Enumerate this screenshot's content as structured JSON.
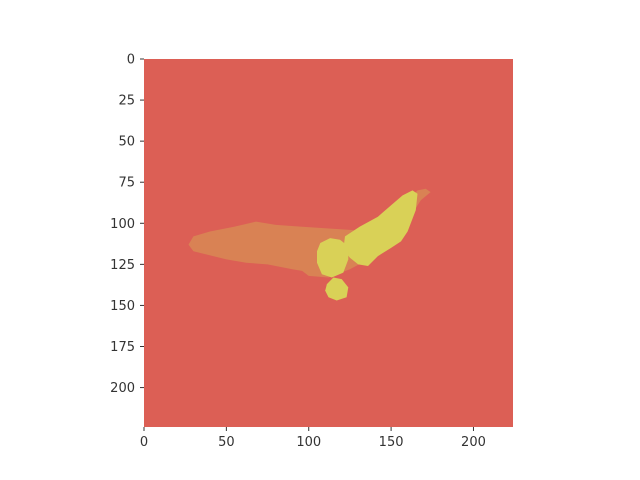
{
  "chart_data": {
    "type": "heatmap",
    "title": "",
    "xlabel": "",
    "ylabel": "",
    "xlim": [
      0,
      224
    ],
    "ylim": [
      224,
      0
    ],
    "xticks": [
      0,
      50,
      100,
      150,
      200
    ],
    "yticks": [
      0,
      25,
      50,
      75,
      100,
      125,
      150,
      175,
      200
    ],
    "grid": false,
    "colors": {
      "background": "#dc5f55",
      "body": "#d98254",
      "highlight": "#d9d157"
    },
    "regions": [
      {
        "class": "body",
        "outline": [
          [
            27,
            113
          ],
          [
            30,
            108
          ],
          [
            40,
            105
          ],
          [
            55,
            102
          ],
          [
            68,
            99
          ],
          [
            80,
            101
          ],
          [
            95,
            102
          ],
          [
            110,
            103
          ],
          [
            125,
            104
          ],
          [
            135,
            105
          ],
          [
            145,
            110
          ],
          [
            140,
            120
          ],
          [
            125,
            128
          ],
          [
            112,
            133
          ],
          [
            100,
            132
          ],
          [
            96,
            129
          ],
          [
            90,
            128
          ],
          [
            75,
            125
          ],
          [
            62,
            124
          ],
          [
            50,
            122
          ],
          [
            38,
            119
          ],
          [
            30,
            117
          ]
        ]
      },
      {
        "class": "body",
        "outline": [
          [
            136,
            110
          ],
          [
            146,
            100
          ],
          [
            156,
            90
          ],
          [
            166,
            80
          ],
          [
            171,
            79
          ],
          [
            174,
            81
          ],
          [
            168,
            86
          ],
          [
            158,
            102
          ],
          [
            152,
            112
          ],
          [
            140,
            116
          ]
        ]
      },
      {
        "class": "highlight",
        "outline": [
          [
            122,
            108
          ],
          [
            131,
            102
          ],
          [
            142,
            96
          ],
          [
            150,
            89
          ],
          [
            157,
            83
          ],
          [
            163,
            80
          ],
          [
            166,
            82
          ],
          [
            165,
            92
          ],
          [
            160,
            105
          ],
          [
            156,
            111
          ],
          [
            150,
            115
          ],
          [
            142,
            120
          ],
          [
            136,
            126
          ],
          [
            130,
            125
          ],
          [
            125,
            121
          ],
          [
            121,
            116
          ]
        ]
      },
      {
        "class": "highlight",
        "outline": [
          [
            107,
            112
          ],
          [
            113,
            109
          ],
          [
            119,
            110
          ],
          [
            124,
            114
          ],
          [
            124,
            122
          ],
          [
            121,
            130
          ],
          [
            114,
            133
          ],
          [
            108,
            131
          ],
          [
            105,
            124
          ],
          [
            105,
            117
          ]
        ]
      },
      {
        "class": "highlight",
        "outline": [
          [
            111,
            137
          ],
          [
            115,
            133
          ],
          [
            120,
            134
          ],
          [
            124,
            139
          ],
          [
            123,
            145
          ],
          [
            117,
            147
          ],
          [
            112,
            145
          ],
          [
            110,
            141
          ]
        ]
      }
    ]
  }
}
